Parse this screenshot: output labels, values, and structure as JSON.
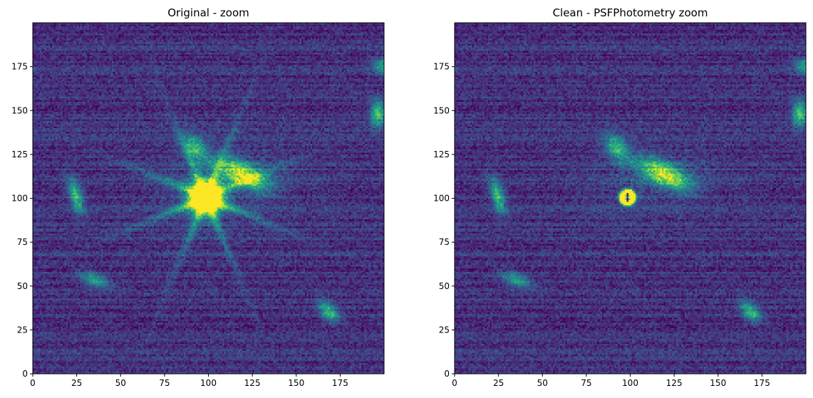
{
  "chart_data": [
    {
      "type": "heatmap",
      "title": "Original - zoom",
      "colormap": "viridis",
      "xlim": [
        0,
        200
      ],
      "ylim": [
        0,
        200
      ],
      "xticks": [
        0,
        25,
        50,
        75,
        100,
        125,
        150,
        175
      ],
      "yticks": [
        0,
        25,
        50,
        75,
        100,
        125,
        150,
        175
      ],
      "grid": false,
      "central_star": {
        "x": 98,
        "y": 100,
        "state": "saturated",
        "spikes": true
      },
      "sources": [
        {
          "x": 24,
          "y": 101,
          "sx": 2.5,
          "sy": 7,
          "angle": 15,
          "amp": 0.55
        },
        {
          "x": 119,
          "y": 113,
          "sx": 11,
          "sy": 4.5,
          "angle": -25,
          "amp": 0.72
        },
        {
          "x": 92,
          "y": 128,
          "sx": 4,
          "sy": 6,
          "angle": 40,
          "amp": 0.5
        },
        {
          "x": 168,
          "y": 35,
          "sx": 3,
          "sy": 5,
          "angle": 45,
          "amp": 0.55
        },
        {
          "x": 35,
          "y": 53,
          "sx": 6,
          "sy": 2.5,
          "angle": -20,
          "amp": 0.45
        },
        {
          "x": 196,
          "y": 148,
          "sx": 3,
          "sy": 5,
          "angle": 0,
          "amp": 0.6
        },
        {
          "x": 199,
          "y": 175,
          "sx": 4,
          "sy": 3,
          "angle": 0,
          "amp": 0.45
        }
      ]
    },
    {
      "type": "heatmap",
      "title": "Clean - PSFPhotometry zoom",
      "colormap": "viridis",
      "xlim": [
        0,
        200
      ],
      "ylim": [
        0,
        200
      ],
      "xticks": [
        0,
        25,
        50,
        75,
        100,
        125,
        150,
        175
      ],
      "yticks": [
        0,
        25,
        50,
        75,
        100,
        125,
        150,
        175
      ],
      "grid": false,
      "central_star": {
        "x": 98,
        "y": 100,
        "state": "subtracted residual",
        "spikes": false
      },
      "sources": [
        {
          "x": 24,
          "y": 101,
          "sx": 2.5,
          "sy": 7,
          "angle": 15,
          "amp": 0.55
        },
        {
          "x": 119,
          "y": 113,
          "sx": 11,
          "sy": 4.5,
          "angle": -25,
          "amp": 0.72
        },
        {
          "x": 92,
          "y": 128,
          "sx": 4,
          "sy": 6,
          "angle": 40,
          "amp": 0.5
        },
        {
          "x": 168,
          "y": 35,
          "sx": 3,
          "sy": 5,
          "angle": 45,
          "amp": 0.55
        },
        {
          "x": 35,
          "y": 53,
          "sx": 6,
          "sy": 2.5,
          "angle": -20,
          "amp": 0.45
        },
        {
          "x": 196,
          "y": 148,
          "sx": 3,
          "sy": 5,
          "angle": 0,
          "amp": 0.6
        },
        {
          "x": 199,
          "y": 175,
          "sx": 4,
          "sy": 3,
          "angle": 0,
          "amp": 0.45
        }
      ]
    }
  ]
}
